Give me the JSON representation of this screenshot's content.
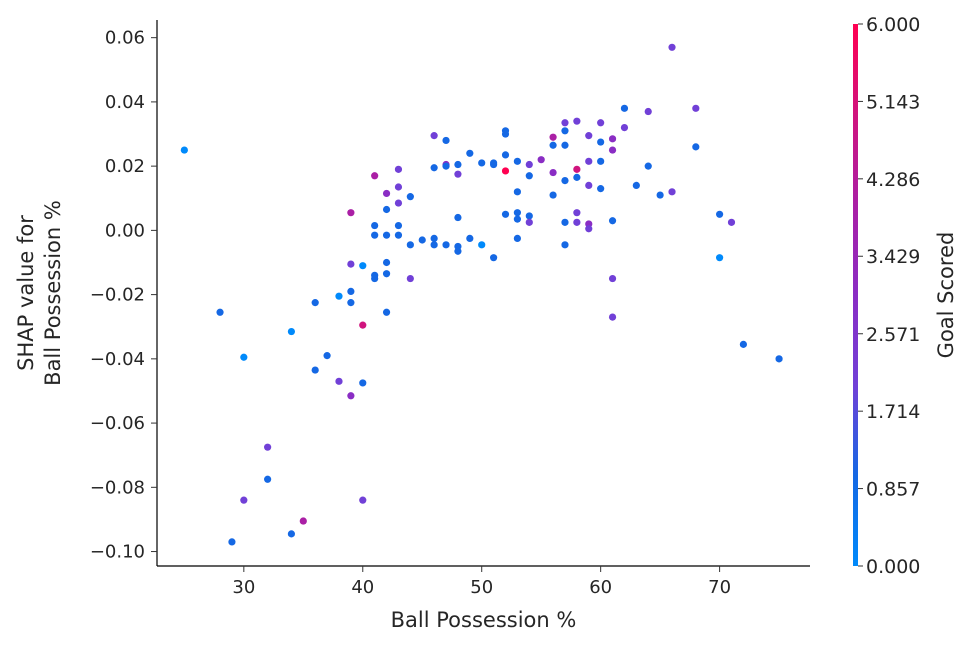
{
  "chart_data": {
    "type": "scatter",
    "title": "",
    "xlabel": "Ball Possession %",
    "ylabel_lines": [
      "SHAP value for",
      "Ball Possession %"
    ],
    "xlim": [
      22.7,
      77.6
    ],
    "ylim": [
      -0.1045,
      0.0655
    ],
    "xticks": [
      30,
      40,
      50,
      60,
      70
    ],
    "yticks": [
      0.06,
      0.04,
      0.02,
      0.0,
      -0.02,
      -0.04,
      -0.06,
      -0.08,
      -0.1
    ],
    "ytick_labels": [
      "0.06",
      "0.04",
      "0.02",
      "0.00",
      "−0.02",
      "−0.04",
      "−0.06",
      "−0.08",
      "−0.10"
    ],
    "grid": false,
    "colorbar": {
      "label": "Goal Scored",
      "min": 0,
      "max": 6,
      "ticks": [
        0,
        0.857,
        1.714,
        2.571,
        3.429,
        4.286,
        5.143,
        6
      ],
      "tick_labels": [
        "0.000",
        "0.857",
        "1.714",
        "2.571",
        "3.429",
        "4.286",
        "5.143",
        "6.000"
      ],
      "colors": [
        "#008afb",
        "#1568e4",
        "#7140d7",
        "#8a2dc4",
        "#aa1fa5",
        "#d0147e",
        "#ff0051"
      ]
    },
    "points": [
      {
        "x": 25,
        "y": 0.025,
        "c": 0
      },
      {
        "x": 28,
        "y": -0.0255,
        "c": 1
      },
      {
        "x": 29,
        "y": -0.097,
        "c": 1
      },
      {
        "x": 30,
        "y": -0.0395,
        "c": 0
      },
      {
        "x": 30,
        "y": -0.084,
        "c": 2
      },
      {
        "x": 32,
        "y": -0.0675,
        "c": 2
      },
      {
        "x": 32,
        "y": -0.0775,
        "c": 1
      },
      {
        "x": 34,
        "y": -0.0315,
        "c": 0
      },
      {
        "x": 34,
        "y": -0.0945,
        "c": 1
      },
      {
        "x": 35,
        "y": -0.0905,
        "c": 4
      },
      {
        "x": 36,
        "y": -0.0225,
        "c": 1
      },
      {
        "x": 36,
        "y": -0.0435,
        "c": 1
      },
      {
        "x": 37,
        "y": -0.039,
        "c": 1
      },
      {
        "x": 38,
        "y": -0.0205,
        "c": 0
      },
      {
        "x": 38,
        "y": -0.047,
        "c": 2
      },
      {
        "x": 39,
        "y": 0.0055,
        "c": 4
      },
      {
        "x": 39,
        "y": -0.0105,
        "c": 2
      },
      {
        "x": 39,
        "y": -0.019,
        "c": 1
      },
      {
        "x": 39,
        "y": -0.0225,
        "c": 1
      },
      {
        "x": 39,
        "y": -0.0515,
        "c": 3
      },
      {
        "x": 40,
        "y": -0.011,
        "c": 0
      },
      {
        "x": 40,
        "y": -0.0295,
        "c": 5
      },
      {
        "x": 40,
        "y": -0.0475,
        "c": 1
      },
      {
        "x": 40,
        "y": -0.084,
        "c": 2
      },
      {
        "x": 41,
        "y": 0.017,
        "c": 4
      },
      {
        "x": 41,
        "y": 0.0015,
        "c": 1
      },
      {
        "x": 41,
        "y": -0.0015,
        "c": 1
      },
      {
        "x": 41,
        "y": -0.014,
        "c": 1
      },
      {
        "x": 41,
        "y": -0.015,
        "c": 1
      },
      {
        "x": 42,
        "y": 0.0115,
        "c": 3
      },
      {
        "x": 42,
        "y": 0.0065,
        "c": 1
      },
      {
        "x": 42,
        "y": -0.0015,
        "c": 1
      },
      {
        "x": 42,
        "y": -0.01,
        "c": 1
      },
      {
        "x": 42,
        "y": -0.0135,
        "c": 1
      },
      {
        "x": 42,
        "y": -0.0255,
        "c": 1
      },
      {
        "x": 43,
        "y": 0.019,
        "c": 2
      },
      {
        "x": 43,
        "y": 0.0135,
        "c": 2
      },
      {
        "x": 43,
        "y": 0.0085,
        "c": 2
      },
      {
        "x": 43,
        "y": 0.0015,
        "c": 1
      },
      {
        "x": 43,
        "y": -0.0015,
        "c": 1
      },
      {
        "x": 44,
        "y": 0.0105,
        "c": 1
      },
      {
        "x": 44,
        "y": -0.0045,
        "c": 1
      },
      {
        "x": 44,
        "y": -0.015,
        "c": 2
      },
      {
        "x": 45,
        "y": -0.003,
        "c": 1
      },
      {
        "x": 46,
        "y": 0.0295,
        "c": 2
      },
      {
        "x": 46,
        "y": 0.0195,
        "c": 1
      },
      {
        "x": 46,
        "y": -0.0025,
        "c": 1
      },
      {
        "x": 46,
        "y": -0.0045,
        "c": 1
      },
      {
        "x": 47,
        "y": 0.028,
        "c": 1
      },
      {
        "x": 47,
        "y": 0.0205,
        "c": 3
      },
      {
        "x": 47,
        "y": 0.02,
        "c": 1
      },
      {
        "x": 47,
        "y": -0.0045,
        "c": 1
      },
      {
        "x": 48,
        "y": 0.0205,
        "c": 1
      },
      {
        "x": 48,
        "y": 0.0175,
        "c": 2
      },
      {
        "x": 48,
        "y": 0.004,
        "c": 1
      },
      {
        "x": 48,
        "y": -0.005,
        "c": 1
      },
      {
        "x": 48,
        "y": -0.0065,
        "c": 1
      },
      {
        "x": 49,
        "y": 0.024,
        "c": 1
      },
      {
        "x": 49,
        "y": -0.0025,
        "c": 1
      },
      {
        "x": 50,
        "y": 0.021,
        "c": 1
      },
      {
        "x": 50,
        "y": -0.0045,
        "c": 0
      },
      {
        "x": 51,
        "y": 0.021,
        "c": 1
      },
      {
        "x": 51,
        "y": 0.0205,
        "c": 1
      },
      {
        "x": 51,
        "y": -0.0085,
        "c": 1
      },
      {
        "x": 52,
        "y": 0.031,
        "c": 1
      },
      {
        "x": 52,
        "y": 0.03,
        "c": 1
      },
      {
        "x": 52,
        "y": 0.0235,
        "c": 1
      },
      {
        "x": 52,
        "y": 0.0185,
        "c": 6
      },
      {
        "x": 52,
        "y": 0.005,
        "c": 1
      },
      {
        "x": 53,
        "y": 0.0215,
        "c": 1
      },
      {
        "x": 53,
        "y": 0.012,
        "c": 1
      },
      {
        "x": 53,
        "y": 0.0055,
        "c": 1
      },
      {
        "x": 53,
        "y": 0.0035,
        "c": 1
      },
      {
        "x": 53,
        "y": -0.0025,
        "c": 1
      },
      {
        "x": 54,
        "y": 0.0205,
        "c": 2
      },
      {
        "x": 54,
        "y": 0.017,
        "c": 1
      },
      {
        "x": 54,
        "y": 0.0045,
        "c": 1
      },
      {
        "x": 54,
        "y": 0.0025,
        "c": 2
      },
      {
        "x": 55,
        "y": 0.022,
        "c": 3
      },
      {
        "x": 56,
        "y": 0.029,
        "c": 4
      },
      {
        "x": 56,
        "y": 0.0265,
        "c": 1
      },
      {
        "x": 56,
        "y": 0.018,
        "c": 3
      },
      {
        "x": 56,
        "y": 0.011,
        "c": 1
      },
      {
        "x": 57,
        "y": 0.0335,
        "c": 2
      },
      {
        "x": 57,
        "y": 0.031,
        "c": 1
      },
      {
        "x": 57,
        "y": 0.0265,
        "c": 1
      },
      {
        "x": 57,
        "y": 0.0155,
        "c": 1
      },
      {
        "x": 57,
        "y": 0.0025,
        "c": 1
      },
      {
        "x": 57,
        "y": -0.0045,
        "c": 1
      },
      {
        "x": 58,
        "y": 0.034,
        "c": 2
      },
      {
        "x": 58,
        "y": 0.019,
        "c": 5
      },
      {
        "x": 58,
        "y": 0.0165,
        "c": 1
      },
      {
        "x": 58,
        "y": 0.0055,
        "c": 2
      },
      {
        "x": 58,
        "y": 0.0025,
        "c": 2
      },
      {
        "x": 59,
        "y": 0.0295,
        "c": 2
      },
      {
        "x": 59,
        "y": 0.0215,
        "c": 2
      },
      {
        "x": 59,
        "y": 0.014,
        "c": 2
      },
      {
        "x": 59,
        "y": 0.002,
        "c": 3
      },
      {
        "x": 59,
        "y": 0.0005,
        "c": 2
      },
      {
        "x": 60,
        "y": 0.0335,
        "c": 2
      },
      {
        "x": 60,
        "y": 0.0275,
        "c": 1
      },
      {
        "x": 60,
        "y": 0.0215,
        "c": 1
      },
      {
        "x": 60,
        "y": 0.013,
        "c": 1
      },
      {
        "x": 61,
        "y": 0.0285,
        "c": 3
      },
      {
        "x": 61,
        "y": 0.025,
        "c": 3
      },
      {
        "x": 61,
        "y": 0.003,
        "c": 1
      },
      {
        "x": 61,
        "y": -0.015,
        "c": 2
      },
      {
        "x": 61,
        "y": -0.027,
        "c": 2
      },
      {
        "x": 62,
        "y": 0.038,
        "c": 1
      },
      {
        "x": 62,
        "y": 0.032,
        "c": 2
      },
      {
        "x": 63,
        "y": 0.014,
        "c": 1
      },
      {
        "x": 64,
        "y": 0.037,
        "c": 2
      },
      {
        "x": 64,
        "y": 0.02,
        "c": 1
      },
      {
        "x": 65,
        "y": 0.011,
        "c": 1
      },
      {
        "x": 66,
        "y": 0.057,
        "c": 2
      },
      {
        "x": 66,
        "y": 0.012,
        "c": 2
      },
      {
        "x": 68,
        "y": 0.038,
        "c": 2
      },
      {
        "x": 68,
        "y": 0.026,
        "c": 1
      },
      {
        "x": 70,
        "y": 0.005,
        "c": 1
      },
      {
        "x": 70,
        "y": -0.0085,
        "c": 0
      },
      {
        "x": 71,
        "y": 0.0025,
        "c": 2
      },
      {
        "x": 72,
        "y": -0.0355,
        "c": 1
      },
      {
        "x": 75,
        "y": -0.04,
        "c": 1
      }
    ]
  }
}
